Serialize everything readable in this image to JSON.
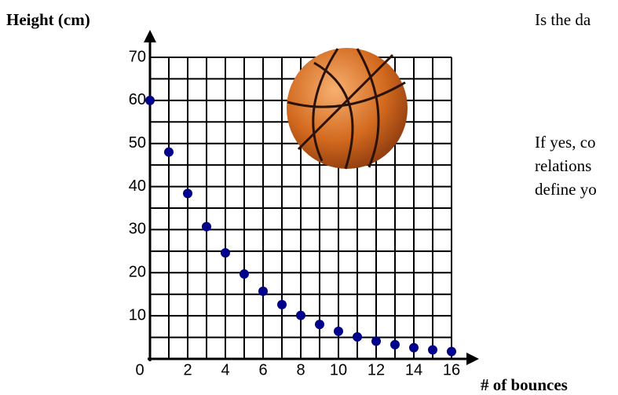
{
  "chart_data": {
    "type": "scatter",
    "y_label": "Height (cm)",
    "x_label": "# of bounces",
    "x": [
      0,
      1,
      2,
      3,
      4,
      5,
      6,
      7,
      8,
      9,
      10,
      11,
      12,
      13,
      14,
      15,
      16
    ],
    "values": [
      60,
      48,
      38.4,
      30.7,
      24.6,
      19.7,
      15.7,
      12.6,
      10.1,
      8,
      6.4,
      5.1,
      4.1,
      3.3,
      2.6,
      2.1,
      1.7
    ],
    "color": "#00008b",
    "xlim": [
      0,
      16
    ],
    "ylim": [
      0,
      70
    ],
    "xticks": [
      0,
      2,
      4,
      6,
      8,
      10,
      12,
      14,
      16
    ],
    "yticks": [
      10,
      20,
      30,
      40,
      50,
      60,
      70
    ],
    "xgrid": [
      0,
      1,
      2,
      3,
      4,
      5,
      6,
      7,
      8,
      9,
      10,
      11,
      12,
      13,
      14,
      15,
      16
    ],
    "ygrid": [
      0,
      5,
      10,
      15,
      20,
      25,
      30,
      35,
      40,
      45,
      50,
      55,
      60,
      65,
      70
    ],
    "grid": true
  },
  "side_text": [
    "Is the da",
    "If yes, co",
    "relations",
    "define yo"
  ]
}
